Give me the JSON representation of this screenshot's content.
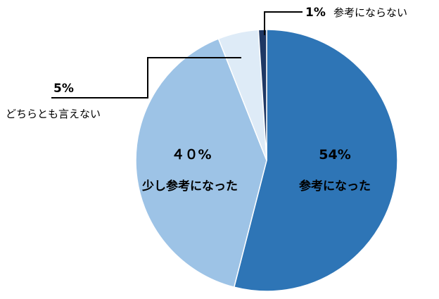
{
  "chart_data": {
    "type": "pie",
    "slices": [
      {
        "label": "参考になった",
        "value_label": "54%",
        "value": 54,
        "color": "#2E75B6"
      },
      {
        "label": "少し参考になった",
        "value_label": "４０%",
        "value": 40,
        "color": "#9DC3E6"
      },
      {
        "label": "どちらとも言えない",
        "value_label": "5%",
        "value": 5,
        "color": "#DEEBF7"
      },
      {
        "label": "参考にならない",
        "value_label": "1%",
        "value": 1,
        "color": "#1F3864"
      }
    ],
    "legend": "none"
  }
}
